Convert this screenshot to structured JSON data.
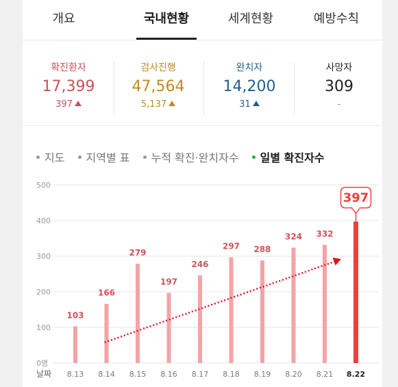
{
  "tabs": [
    {
      "label": "개요"
    },
    {
      "label": "국내현황",
      "active": true
    },
    {
      "label": "세계현황"
    },
    {
      "label": "예방수칙"
    }
  ],
  "stats": [
    {
      "label": "확진환자",
      "value": "17,399",
      "change": "397",
      "arrow": "up",
      "color": "#c8515a"
    },
    {
      "label": "검사진행",
      "value": "47,564",
      "change": "5,137",
      "arrow": "up",
      "color": "#c18a22"
    },
    {
      "label": "완치자",
      "value": "14,200",
      "change": "31",
      "arrow": "up",
      "color": "#1f5f8f"
    },
    {
      "label": "사망자",
      "value": "309",
      "change": "-",
      "arrow": "none",
      "color": "#222222"
    }
  ],
  "subnav": [
    {
      "label": "지도"
    },
    {
      "label": "지역별 표"
    },
    {
      "label": "누적 확진·완치자수"
    },
    {
      "label": "일별 확진자수",
      "active": true
    }
  ],
  "chart_data": {
    "type": "bar",
    "xlabel": "날짜",
    "ylim": [
      0,
      500
    ],
    "yticks": [
      "0명",
      "100",
      "200",
      "300",
      "400",
      "500"
    ],
    "categories": [
      "8.13",
      "8.14",
      "8.15",
      "8.16",
      "8.17",
      "8.18",
      "8.19",
      "8.20",
      "8.21",
      "8.22"
    ],
    "values": [
      103,
      166,
      279,
      197,
      246,
      297,
      288,
      324,
      332,
      397
    ],
    "highlight_index": 9,
    "highlight_label": "397",
    "grid": true,
    "colors": {
      "bar": "#f4a3a6",
      "highlight": "#e8413f",
      "value_label": "#d2535a",
      "trend_arrow": "#e0121d"
    }
  }
}
